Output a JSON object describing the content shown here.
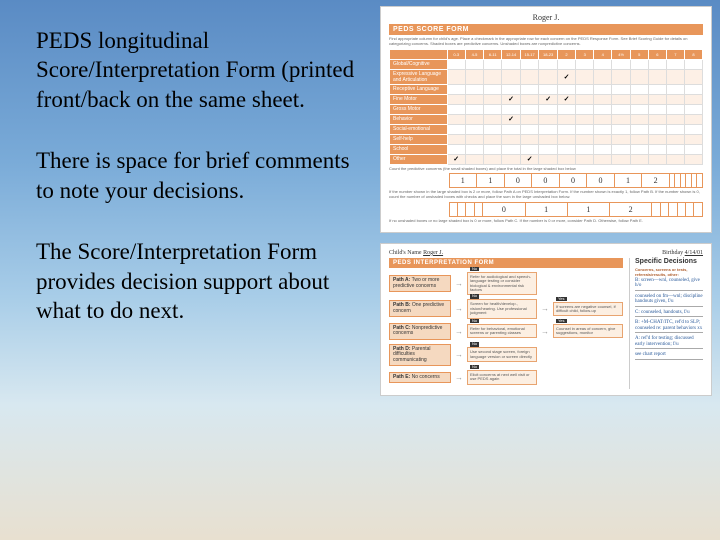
{
  "text": {
    "p1": "PEDS longitudinal Score/Interpretation Form (printed front/back on the same sheet.",
    "p2": "There is space for brief comments to note your decisions.",
    "p3": "The Score/Interpretation Form provides decision support about what to do next."
  },
  "scoreForm": {
    "childName": "Roger J.",
    "title": "PEDS SCORE FORM",
    "instructions": "Find appropriate column for child's age. Place a checkmark in the appropriate row for each concern on the PEDS Response Form. See Brief Scoring Guide for details on categorizing concerns. Shaded boxes are predictive concerns. Unshaded boxes are nonpredictive concerns.",
    "ageColumns": [
      "0-3",
      "4-5",
      "6-11",
      "12-14",
      "15-17",
      "18-23",
      "2",
      "3",
      "4",
      "4½",
      "5",
      "6",
      "7",
      "8"
    ],
    "rows": [
      {
        "label": "Global/Cognitive",
        "alt": false,
        "checks": []
      },
      {
        "label": "Expressive Language and Articulation",
        "alt": true,
        "checks": [
          6
        ]
      },
      {
        "label": "Receptive Language",
        "alt": false,
        "checks": []
      },
      {
        "label": "Fine Motor",
        "alt": true,
        "checks": [
          3,
          5,
          6
        ]
      },
      {
        "label": "Gross Motor",
        "alt": false,
        "checks": []
      },
      {
        "label": "Behavior",
        "alt": true,
        "checks": [
          3
        ]
      },
      {
        "label": "Social-emotional",
        "alt": false,
        "checks": []
      },
      {
        "label": "Self-help",
        "alt": true,
        "checks": []
      },
      {
        "label": "School",
        "alt": false,
        "checks": []
      },
      {
        "label": "Other",
        "alt": true,
        "checks": [
          0,
          4
        ]
      }
    ],
    "sumLabel": "Count the predictive concerns (the small shaded boxes) and place the total in the large shaded box below",
    "sums": [
      "1",
      "1",
      "0",
      "0",
      "0",
      "0",
      "1",
      "2",
      "",
      "",
      "",
      "",
      "",
      ""
    ],
    "footnote1": "If the number shown in the large shaded box is 2 or more, follow Path A on PEDS Interpretation Form. If the number shown is exactly 1, follow Path B. If the number shown is 0, count the number of unshaded boxes with checks and place the sum in the large unshaded box below.",
    "sums2": [
      "",
      "",
      "",
      "",
      "0",
      "1",
      "1",
      "2",
      "",
      "",
      "",
      "",
      "",
      ""
    ],
    "footnote2": "If no unshaded boxes or no large shaded box is 0 or more, follow Path C. If the number is 0 or more, consider Path D. Otherwise, follow Path E."
  },
  "interpForm": {
    "childLabel": "Child's Name",
    "childName": "Roger J.",
    "birthLabel": "Birthday",
    "birthDate": "4/14/01",
    "title": "PEDS INTERPRETATION FORM",
    "paths": [
      {
        "tag": "Path A:",
        "label": "Two or more predictive concerns",
        "boxes": [
          "Refer for audiological and speech-language testing or consider biological & environmental risk factors",
          ""
        ]
      },
      {
        "tag": "Path B:",
        "label": "One predictive concern",
        "boxes": [
          "Screen for health/develop., vision/hearing. Use professional judgment",
          "If screens are negative counsel, if difficult child, follow-up"
        ]
      },
      {
        "tag": "Path C:",
        "label": "Nonpredictive concerns",
        "boxes": [
          "Refer for behavioral, emotional screens or parenting classes",
          "Counsel in areas of concern, give suggestions, monitor"
        ]
      },
      {
        "tag": "Path D:",
        "label": "Parental difficulties communicating",
        "boxes": [
          "Use second stage screen, foreign language version or screen directly",
          ""
        ]
      },
      {
        "tag": "Path E:",
        "label": "No concerns",
        "boxes": [
          "Elicit concerns at next well visit or use PEDS again",
          ""
        ]
      }
    ],
    "specHeader": "Specific Decisions",
    "specHdrs": [
      "Concerns, screens or tests, referrals/results, other:",
      "",
      "",
      "",
      ""
    ],
    "specLines": [
      "B: screen—wnl, counseled, give h/o",
      "counseled on fm—wnl; discipline handouts given, f/u",
      "C: counseled, handouts, f/u",
      "B: +M-CHAT/ITC, ref'd to SLP; counseled re: parent behaviors xx",
      "A: ref'd for testing; discussed early intervention; f/u",
      "see chart report"
    ]
  },
  "colors": {
    "accent": "#e8965a",
    "accentLight": "#fdf0e6",
    "handwriting": "#2a5a9a"
  }
}
